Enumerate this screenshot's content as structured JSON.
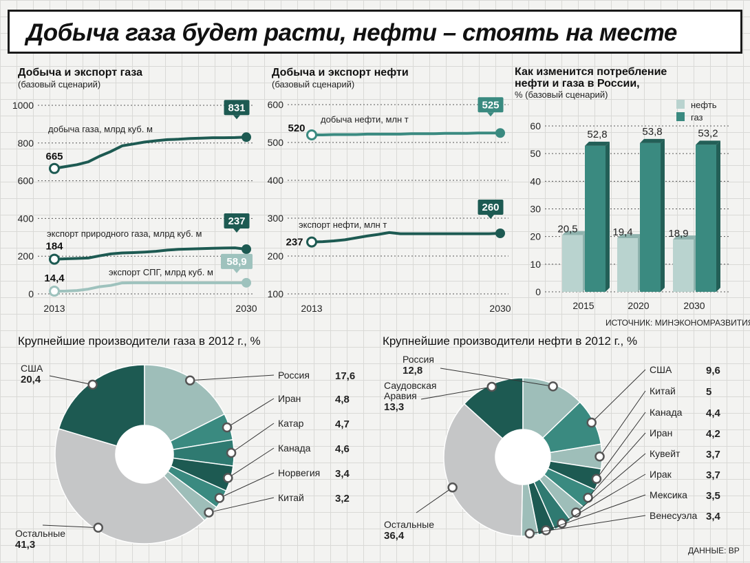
{
  "headline": "Добыча газа будет расти, нефти – стоять на месте",
  "source": "ИСТОЧНИК: МИНЭКОНОМРАЗВИТИЯ",
  "data_credit": "ДАННЫЕ: BP",
  "colors": {
    "dark": "#1d5a52",
    "mid": "#3a8a80",
    "light": "#9ec2bd",
    "pale": "#c3d9d5",
    "grey": "#c7c8c9"
  },
  "chart_data": [
    {
      "type": "line",
      "title": "Добыча и экспорт газа",
      "subtitle": "(базовый сценарий)",
      "x": [
        2013,
        2014,
        2015,
        2016,
        2017,
        2018,
        2019,
        2020,
        2021,
        2022,
        2023,
        2024,
        2025,
        2026,
        2027,
        2028,
        2029,
        2030
      ],
      "ylim": [
        0,
        1000
      ],
      "yticks": [
        0,
        200,
        400,
        600,
        800,
        1000
      ],
      "xtick_labels": [
        "2013",
        "2030"
      ],
      "series": [
        {
          "name": "добыча газа, млрд куб. м",
          "color": "#1d5a52",
          "values": [
            665,
            675,
            685,
            700,
            730,
            755,
            785,
            795,
            805,
            812,
            818,
            820,
            824,
            826,
            828,
            828,
            829,
            831
          ],
          "start_label": "665",
          "end_label": "831"
        },
        {
          "name": "экспорт природного газа, млрд куб. м",
          "color": "#1d5a52",
          "values": [
            184,
            186,
            188,
            190,
            202,
            212,
            217,
            219,
            222,
            226,
            232,
            236,
            238,
            240,
            242,
            243,
            244,
            237
          ],
          "start_label": "184",
          "end_label": "237"
        },
        {
          "name": "экспорт СПГ, млрд куб. м",
          "color": "#9ec2bd",
          "values": [
            14.4,
            15,
            18,
            25,
            38,
            45,
            58,
            58.9,
            58.9,
            58.9,
            58.9,
            58.9,
            58.9,
            58.9,
            58.9,
            58.9,
            58.9,
            58.9
          ],
          "start_label": "14,4",
          "end_label": "58,9"
        }
      ]
    },
    {
      "type": "line",
      "title": "Добыча и экспорт нефти",
      "subtitle": "(базовый сценарий)",
      "x": [
        2013,
        2014,
        2015,
        2016,
        2017,
        2018,
        2019,
        2020,
        2021,
        2022,
        2023,
        2024,
        2025,
        2026,
        2027,
        2028,
        2029,
        2030
      ],
      "ylim": [
        100,
        600
      ],
      "yticks": [
        100,
        200,
        300,
        400,
        500,
        600
      ],
      "xtick_labels": [
        "2013",
        "2030"
      ],
      "series": [
        {
          "name": "добыча нефти, млн т",
          "color": "#3a8a80",
          "values": [
            520,
            520,
            521,
            521,
            521,
            522,
            522,
            522,
            522,
            523,
            523,
            523,
            524,
            524,
            524,
            525,
            525,
            525
          ],
          "start_label": "520",
          "end_label": "525"
        },
        {
          "name": "экспорт нефти, млн т",
          "color": "#1d5a52",
          "values": [
            237,
            238,
            240,
            243,
            248,
            253,
            257,
            262,
            259,
            259,
            259,
            259,
            259,
            259,
            259,
            259,
            259,
            260
          ],
          "start_label": "237",
          "end_label": "260"
        }
      ]
    },
    {
      "type": "bar",
      "title": "Как изменится потребление нефти и газа в России,",
      "subtitle": "% (базовый сценарий)",
      "categories": [
        "2015",
        "2020",
        "2030"
      ],
      "ylim": [
        0,
        60
      ],
      "yticks": [
        0,
        10,
        20,
        30,
        40,
        50,
        60
      ],
      "legend_position": "top-right",
      "series": [
        {
          "name": "нефть",
          "color": "#b9d3cf",
          "values": [
            20.5,
            19.4,
            18.9
          ],
          "labels": [
            "20,5",
            "19,4",
            "18,9"
          ]
        },
        {
          "name": "газ",
          "color": "#3a8a80",
          "values": [
            52.8,
            53.8,
            53.2
          ],
          "labels": [
            "52,8",
            "53,8",
            "53,2"
          ]
        }
      ]
    },
    {
      "type": "pie",
      "title": "Крупнейшие производители газа в 2012 г., %",
      "slices": [
        {
          "name": "США",
          "value": 20.4,
          "label": "20,4",
          "color": "#1d5a52"
        },
        {
          "name": "Россия",
          "value": 17.6,
          "label": "17,6",
          "color": "#9ebeb9"
        },
        {
          "name": "Иран",
          "value": 4.8,
          "label": "4,8",
          "color": "#3a8a80"
        },
        {
          "name": "Катар",
          "value": 4.7,
          "label": "4,7",
          "color": "#2f7a71"
        },
        {
          "name": "Канада",
          "value": 4.6,
          "label": "4,6",
          "color": "#1d5a52"
        },
        {
          "name": "Норвегия",
          "value": 3.4,
          "label": "3,4",
          "color": "#3a8a80"
        },
        {
          "name": "Китай",
          "value": 3.2,
          "label": "3,2",
          "color": "#9ebeb9"
        },
        {
          "name": "Остальные",
          "value": 41.3,
          "label": "41,3",
          "color": "#c5c6c7"
        }
      ]
    },
    {
      "type": "pie",
      "title": "Крупнейшие производители нефти в 2012 г., %",
      "slices": [
        {
          "name": "Саудовская Аравия",
          "value": 13.3,
          "label": "13,3",
          "color": "#1d5a52"
        },
        {
          "name": "Россия",
          "value": 12.8,
          "label": "12,8",
          "color": "#9ebeb9"
        },
        {
          "name": "США",
          "value": 9.6,
          "label": "9,6",
          "color": "#3a8a80"
        },
        {
          "name": "Китай",
          "value": 5,
          "label": "5",
          "color": "#9ebeb9"
        },
        {
          "name": "Канада",
          "value": 4.4,
          "label": "4,4",
          "color": "#1d5a52"
        },
        {
          "name": "Иран",
          "value": 4.2,
          "label": "4,2",
          "color": "#3a8a80"
        },
        {
          "name": "Кувейт",
          "value": 3.7,
          "label": "3,7",
          "color": "#9ebeb9"
        },
        {
          "name": "Ирак",
          "value": 3.7,
          "label": "3,7",
          "color": "#2f7a71"
        },
        {
          "name": "Мексика",
          "value": 3.5,
          "label": "3,5",
          "color": "#1d5a52"
        },
        {
          "name": "Венесуэла",
          "value": 3.4,
          "label": "3,4",
          "color": "#9ebeb9"
        },
        {
          "name": "Остальные",
          "value": 36.4,
          "label": "36,4",
          "color": "#c5c6c7"
        }
      ]
    }
  ]
}
